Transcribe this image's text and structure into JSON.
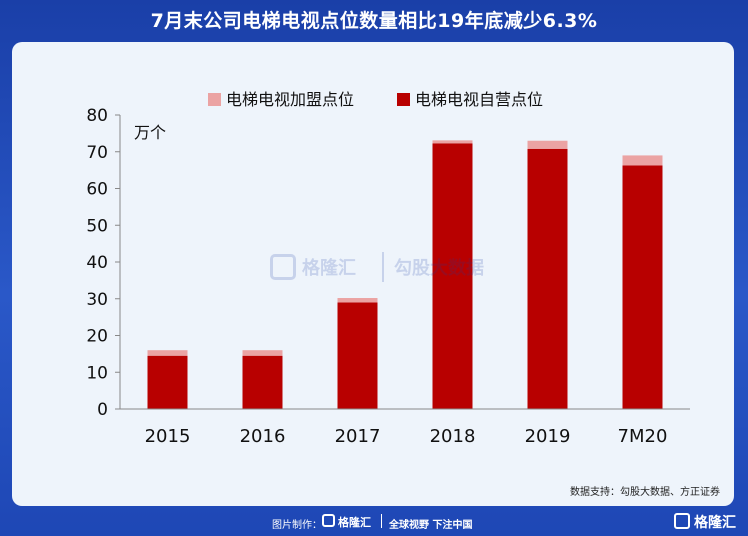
{
  "title": "7月末公司电梯电视点位数量相比19年底减少6.3%",
  "source": "数据支持：勾股大数据、方正证券",
  "watermark": {
    "brand": "格隆汇",
    "sub": "勾股大数据"
  },
  "footer": {
    "made_by": "图片制作：",
    "brand": "格隆汇",
    "slogan": "全球视野 下注中国",
    "corner_brand": "格隆汇"
  },
  "colors": {
    "franchise": "#eba3a3",
    "self_operated": "#b80000",
    "background": "#1a3fa8",
    "panel": "#eef4fb"
  },
  "chart_data": {
    "type": "bar",
    "stacked": true,
    "unit_label": "万个",
    "categories": [
      "2015",
      "2016",
      "2017",
      "2018",
      "2019",
      "7M20"
    ],
    "series": [
      {
        "name": "电梯电视自营点位",
        "values": [
          14.5,
          14.5,
          29.0,
          72.3,
          70.8,
          66.3
        ]
      },
      {
        "name": "电梯电视加盟点位",
        "values": [
          1.5,
          1.5,
          1.2,
          0.8,
          2.2,
          2.7
        ]
      }
    ],
    "ylim": [
      0,
      80
    ],
    "yticks": [
      "0",
      "10",
      "20",
      "30",
      "40",
      "50",
      "60",
      "70",
      "80"
    ],
    "legend_position": "top",
    "grid": false
  }
}
